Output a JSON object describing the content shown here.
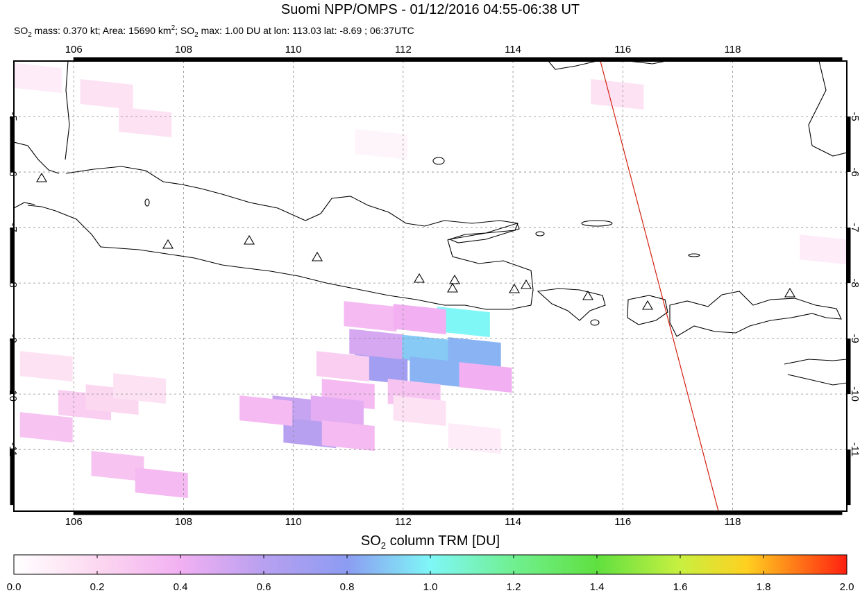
{
  "map": {
    "title": "Suomi NPP/OMPS - 01/12/2016 04:55-06:38 UT",
    "subtitle_parts": [
      "SO",
      "2",
      " mass: 0.370 kt; Area: 15690 km",
      "2",
      "; SO",
      "2",
      " max: 1.00 DU at lon: 113.03 lat: -8.69 ; 06:37UTC"
    ],
    "xlim": [
      104.91,
      120.08
    ],
    "ylim": [
      -12.11,
      -4.0
    ],
    "xticks": [
      106,
      108,
      110,
      112,
      114,
      116,
      118
    ],
    "yticks": [
      -5,
      -6,
      -7,
      -8,
      -9,
      -10,
      -11
    ],
    "grid": true,
    "so2_pixels": [
      {
        "lon": 113.1,
        "lat": -8.7,
        "value": 1.0
      },
      {
        "lon": 112.4,
        "lat": -9.2,
        "value": 0.9
      },
      {
        "lon": 113.3,
        "lat": -9.25,
        "value": 0.85
      },
      {
        "lon": 111.6,
        "lat": -9.55,
        "value": 0.7
      },
      {
        "lon": 112.6,
        "lat": -9.6,
        "value": 0.85
      },
      {
        "lon": 113.5,
        "lat": -9.7,
        "value": 0.4
      },
      {
        "lon": 111.4,
        "lat": -8.6,
        "value": 0.35
      },
      {
        "lon": 112.3,
        "lat": -8.65,
        "value": 0.4
      },
      {
        "lon": 111.5,
        "lat": -9.1,
        "value": 0.5
      },
      {
        "lon": 110.9,
        "lat": -9.5,
        "value": 0.25
      },
      {
        "lon": 111.0,
        "lat": -10.0,
        "value": 0.35
      },
      {
        "lon": 112.2,
        "lat": -10.0,
        "value": 0.3
      },
      {
        "lon": 110.1,
        "lat": -10.3,
        "value": 0.55
      },
      {
        "lon": 110.8,
        "lat": -10.3,
        "value": 0.45
      },
      {
        "lon": 110.3,
        "lat": -10.7,
        "value": 0.6
      },
      {
        "lon": 111.0,
        "lat": -10.75,
        "value": 0.35
      },
      {
        "lon": 109.5,
        "lat": -10.3,
        "value": 0.35
      },
      {
        "lon": 112.3,
        "lat": -10.3,
        "value": 0.15
      },
      {
        "lon": 105.5,
        "lat": -9.5,
        "value": 0.15
      },
      {
        "lon": 106.2,
        "lat": -10.2,
        "value": 0.25
      },
      {
        "lon": 105.5,
        "lat": -10.6,
        "value": 0.3
      },
      {
        "lon": 106.8,
        "lat": -11.3,
        "value": 0.3
      },
      {
        "lon": 107.6,
        "lat": -11.6,
        "value": 0.35
      },
      {
        "lon": 106.7,
        "lat": -10.1,
        "value": 0.2
      },
      {
        "lon": 107.2,
        "lat": -9.9,
        "value": 0.15
      },
      {
        "lon": 105.3,
        "lat": -4.3,
        "value": 0.1
      },
      {
        "lon": 106.6,
        "lat": -4.6,
        "value": 0.15
      },
      {
        "lon": 107.3,
        "lat": -5.1,
        "value": 0.15
      },
      {
        "lon": 115.9,
        "lat": -4.6,
        "value": 0.15
      },
      {
        "lon": 119.7,
        "lat": -7.4,
        "value": 0.1
      },
      {
        "lon": 111.6,
        "lat": -5.5,
        "value": 0.05
      },
      {
        "lon": 113.3,
        "lat": -10.8,
        "value": 0.1
      }
    ],
    "colorbar_label_parts": [
      "SO",
      "2",
      " column TRM [DU]"
    ],
    "clim": [
      0,
      2.0
    ],
    "colorbar_ticks": [
      {
        "value": 0,
        "label": "0.0"
      },
      0.2,
      0.4,
      0.6,
      0.8,
      {
        "value": 1,
        "label": "1.0"
      },
      1.2,
      1.4,
      1.6,
      1.8,
      {
        "value": 2,
        "label": "2.0"
      }
    ]
  }
}
